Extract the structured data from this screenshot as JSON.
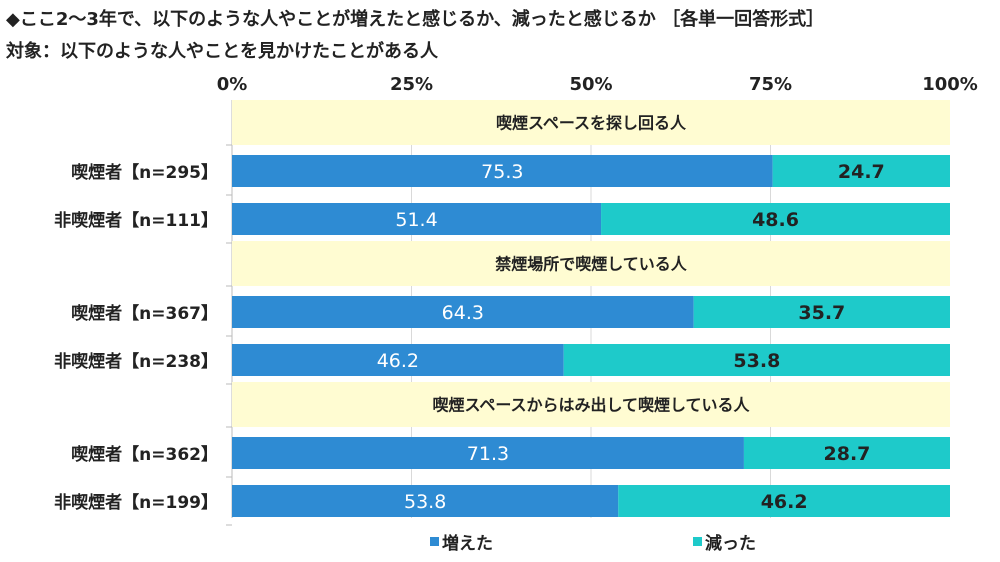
{
  "chart_data": {
    "type": "bar",
    "orientation": "horizontal",
    "stacked": true,
    "title": "◆ここ2～3年で、以下のような人やことが増えたと感じるか、減ったと感じるか ［各単一回答形式］",
    "subtitle": "対象：以下のような人やことを見かけたことがある人",
    "xlim": [
      0,
      100
    ],
    "ticks": [
      "0%",
      "25%",
      "50%",
      "75%",
      "100%"
    ],
    "grid": true,
    "legend_position": "bottom",
    "series_names": [
      "増えた",
      "減った"
    ],
    "colors": {
      "increased": "#2E8BD3",
      "decreased": "#1ECACA",
      "group_band": "#FFFCD2"
    },
    "groups": [
      {
        "label": "喫煙スペースを探し回る人",
        "rows": [
          {
            "label": "喫煙者【n=295】",
            "values": [
              75.3,
              24.7
            ]
          },
          {
            "label": "非喫煙者【n=111】",
            "values": [
              51.4,
              48.6
            ]
          }
        ]
      },
      {
        "label": "禁煙場所で喫煙している人",
        "rows": [
          {
            "label": "喫煙者【n=367】",
            "values": [
              64.3,
              35.7
            ]
          },
          {
            "label": "非喫煙者【n=238】",
            "values": [
              46.2,
              53.8
            ]
          }
        ]
      },
      {
        "label": "喫煙スペースからはみ出して喫煙している人",
        "rows": [
          {
            "label": "喫煙者【n=362】",
            "values": [
              71.3,
              28.7
            ]
          },
          {
            "label": "非喫煙者【n=199】",
            "values": [
              53.8,
              46.2
            ]
          }
        ]
      }
    ]
  }
}
